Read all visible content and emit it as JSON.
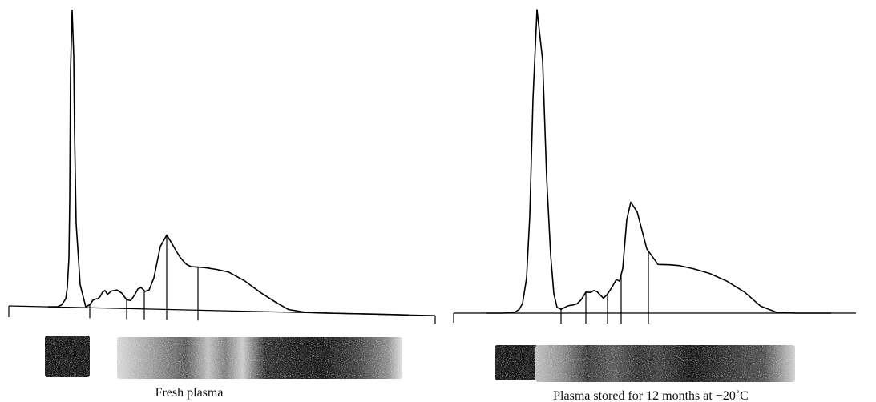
{
  "chart_data": [
    {
      "type": "line",
      "caption": "Fresh plasma",
      "series": [
        {
          "x": [
            0,
            12,
            17,
            22,
            24,
            26,
            27,
            28,
            30,
            32,
            33,
            35,
            40,
            47,
            52,
            56,
            59,
            62,
            65,
            68,
            71,
            74,
            79,
            86,
            92,
            98,
            103,
            108,
            112,
            116,
            121,
            126,
            132,
            140,
            148,
            154,
            161,
            164,
            167,
            170,
            173,
            178,
            186,
            196,
            210,
            225,
            245,
            265,
            285,
            300,
            320,
            340,
            370,
            400,
            425,
            450
          ],
          "y": [
            0,
            0.1,
            0.6,
            2.2,
            5.2,
            13,
            28,
            62,
            78,
            66,
            46,
            22,
            6,
            0.2,
            0.8,
            2.0,
            2.3,
            2.4,
            3.0,
            4.2,
            4.6,
            3.6,
            4.5,
            4.8,
            4.0,
            2.3,
            2.1,
            3.6,
            5.2,
            5.6,
            4.6,
            5.0,
            8.2,
            16.5,
            19.5,
            17.5,
            15.0,
            14.0,
            13.2,
            12.5,
            11.9,
            11.4,
            11.3,
            11.2,
            10.8,
            10.2,
            8.0,
            5.0,
            2.4,
            0.7,
            0.1,
            0,
            0,
            0,
            0,
            0
          ]
        }
      ],
      "fraction_boundaries": [
        52,
        98,
        120,
        148,
        187
      ]
    },
    {
      "type": "line",
      "caption": "Plasma stored for 12 months at −20˚C",
      "series": [
        {
          "x": [
            0,
            12,
            20,
            30,
            36,
            41,
            45,
            50,
            54,
            58,
            63,
            70,
            75,
            80,
            84,
            88,
            93,
            98,
            102,
            108,
            113,
            118,
            124,
            130,
            134,
            138,
            142,
            146,
            151,
            157,
            162,
            166,
            170,
            175,
            180,
            188,
            200,
            214,
            228,
            240,
            258,
            278,
            300,
            322,
            342,
            362,
            385,
            410,
            430
          ],
          "y": [
            0,
            0,
            0,
            0.1,
            0.3,
            1.0,
            2.5,
            9,
            25,
            55,
            78,
            65,
            35,
            15,
            5,
            1.5,
            1.0,
            1.5,
            1.9,
            2.1,
            2.4,
            3.4,
            5.4,
            5.3,
            5.8,
            5.5,
            4.6,
            3.8,
            4.9,
            6.8,
            8.6,
            8.2,
            11.5,
            24.0,
            28.5,
            26.0,
            16.5,
            12.5,
            12.4,
            12.2,
            11.4,
            10.2,
            8.2,
            5.4,
            1.8,
            0.2,
            0,
            0,
            0
          ]
        }
      ],
      "fraction_boundaries": [
        93,
        124,
        151,
        168,
        202
      ]
    }
  ]
}
